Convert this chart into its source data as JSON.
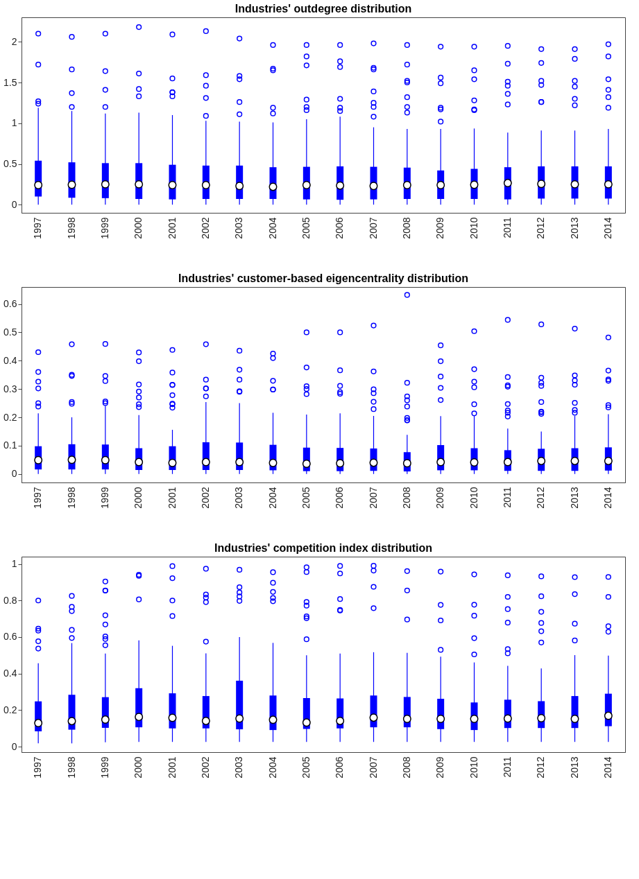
{
  "chart_data": [
    {
      "type": "box",
      "title": "Industries' outdegree distribution",
      "categories": [
        "1997",
        "1998",
        "1999",
        "2000",
        "2001",
        "2002",
        "2003",
        "2004",
        "2005",
        "2006",
        "2007",
        "2008",
        "2009",
        "2010",
        "2011",
        "2012",
        "2013",
        "2014"
      ],
      "ylim": [
        -0.1,
        2.3
      ],
      "yticks": [
        0,
        0.5,
        1,
        1.5,
        2
      ],
      "series": [
        {
          "color": "#0000ff",
          "boxes": [
            {
              "low": 0,
              "q1": 0.1,
              "median": 0.24,
              "q3": 0.54,
              "high": 1.19,
              "outliers": [
                2.1,
                1.72,
                1.27,
                1.24
              ]
            },
            {
              "low": 0,
              "q1": 0.085,
              "median": 0.245,
              "q3": 0.52,
              "high": 1.15,
              "outliers": [
                2.06,
                1.66,
                1.37,
                1.2
              ]
            },
            {
              "low": 0,
              "q1": 0.08,
              "median": 0.25,
              "q3": 0.51,
              "high": 1.12,
              "outliers": [
                2.1,
                1.64,
                1.41,
                1.2
              ]
            },
            {
              "low": 0,
              "q1": 0.07,
              "median": 0.25,
              "q3": 0.51,
              "high": 1.13,
              "outliers": [
                2.18,
                1.61,
                1.42,
                1.33
              ]
            },
            {
              "low": 0,
              "q1": 0.065,
              "median": 0.24,
              "q3": 0.49,
              "high": 1.1,
              "outliers": [
                2.09,
                1.55,
                1.38,
                1.38,
                1.33
              ]
            },
            {
              "low": 0,
              "q1": 0.07,
              "median": 0.24,
              "q3": 0.48,
              "high": 1.03,
              "outliers": [
                2.13,
                1.59,
                1.46,
                1.31,
                1.09
              ]
            },
            {
              "low": 0,
              "q1": 0.07,
              "median": 0.23,
              "q3": 0.48,
              "high": 1.02,
              "outliers": [
                2.04,
                1.58,
                1.54,
                1.26,
                1.11
              ]
            },
            {
              "low": 0,
              "q1": 0.07,
              "median": 0.22,
              "q3": 0.46,
              "high": 1.01,
              "outliers": [
                1.96,
                1.67,
                1.65,
                1.19,
                1.12
              ]
            },
            {
              "low": 0,
              "q1": 0.065,
              "median": 0.24,
              "q3": 0.465,
              "high": 1.05,
              "outliers": [
                1.96,
                1.82,
                1.71,
                1.29,
                1.2,
                1.16
              ]
            },
            {
              "low": 0,
              "q1": 0.06,
              "median": 0.235,
              "q3": 0.47,
              "high": 1.08,
              "outliers": [
                1.96,
                1.76,
                1.69,
                1.3,
                1.19,
                1.15
              ]
            },
            {
              "low": 0,
              "q1": 0.065,
              "median": 0.23,
              "q3": 0.465,
              "high": 0.95,
              "outliers": [
                1.98,
                1.68,
                1.66,
                1.39,
                1.25,
                1.2,
                1.08
              ]
            },
            {
              "low": 0,
              "q1": 0.07,
              "median": 0.24,
              "q3": 0.455,
              "high": 0.93,
              "outliers": [
                1.96,
                1.72,
                1.52,
                1.5,
                1.32,
                1.2,
                1.13
              ]
            },
            {
              "low": 0,
              "q1": 0.07,
              "median": 0.24,
              "q3": 0.42,
              "high": 0.93,
              "outliers": [
                1.94,
                1.56,
                1.49,
                1.19,
                1.17,
                1.02
              ]
            },
            {
              "low": 0,
              "q1": 0.07,
              "median": 0.245,
              "q3": 0.44,
              "high": 0.935,
              "outliers": [
                1.94,
                1.65,
                1.54,
                1.28,
                1.17,
                1.16
              ]
            },
            {
              "low": 0,
              "q1": 0.065,
              "median": 0.265,
              "q3": 0.46,
              "high": 0.885,
              "outliers": [
                1.95,
                1.73,
                1.51,
                1.46,
                1.36,
                1.23
              ]
            },
            {
              "low": 0,
              "q1": 0.075,
              "median": 0.255,
              "q3": 0.47,
              "high": 0.91,
              "outliers": [
                1.91,
                1.74,
                1.52,
                1.47,
                1.26,
                1.26
              ]
            },
            {
              "low": 0,
              "q1": 0.075,
              "median": 0.25,
              "q3": 0.47,
              "high": 0.91,
              "outliers": [
                1.91,
                1.79,
                1.52,
                1.45,
                1.3,
                1.22
              ]
            },
            {
              "low": 0,
              "q1": 0.075,
              "median": 0.25,
              "q3": 0.47,
              "high": 0.93,
              "outliers": [
                1.97,
                1.82,
                1.54,
                1.41,
                1.32,
                1.19
              ]
            }
          ]
        }
      ]
    },
    {
      "type": "box",
      "title": "Industries' customer-based eigencentrality distribution",
      "categories": [
        "1997",
        "1998",
        "1999",
        "2000",
        "2001",
        "2002",
        "2003",
        "2004",
        "2005",
        "2006",
        "2007",
        "2008",
        "2009",
        "2010",
        "2011",
        "2012",
        "2013",
        "2014"
      ],
      "ylim": [
        -0.03,
        0.66
      ],
      "yticks": [
        0,
        0.1,
        0.2,
        0.3,
        0.4,
        0.5,
        0.6
      ],
      "series": [
        {
          "color": "#0000ff",
          "boxes": [
            {
              "low": 0,
              "q1": 0.016,
              "median": 0.049,
              "q3": 0.098,
              "high": 0.214,
              "outliers": [
                0.43,
                0.36,
                0.326,
                0.302,
                0.25,
                0.238
              ]
            },
            {
              "low": 0,
              "q1": 0.016,
              "median": 0.05,
              "q3": 0.105,
              "high": 0.2,
              "outliers": [
                0.458,
                0.35,
                0.346,
                0.254,
                0.248
              ]
            },
            {
              "low": 0,
              "q1": 0.016,
              "median": 0.049,
              "q3": 0.104,
              "high": 0.24,
              "outliers": [
                0.459,
                0.346,
                0.328,
                0.256,
                0.25
              ]
            },
            {
              "low": 0,
              "q1": 0.014,
              "median": 0.042,
              "q3": 0.091,
              "high": 0.208,
              "outliers": [
                0.429,
                0.398,
                0.316,
                0.291,
                0.27,
                0.246,
                0.236
              ]
            },
            {
              "low": 0,
              "q1": 0.014,
              "median": 0.039,
              "q3": 0.098,
              "high": 0.156,
              "outliers": [
                0.438,
                0.358,
                0.315,
                0.314,
                0.278,
                0.248,
                0.246,
                0.234
              ]
            },
            {
              "low": 0,
              "q1": 0.014,
              "median": 0.042,
              "q3": 0.112,
              "high": 0.254,
              "outliers": [
                0.458,
                0.333,
                0.302,
                0.302,
                0.274
              ]
            },
            {
              "low": 0,
              "q1": 0.014,
              "median": 0.042,
              "q3": 0.111,
              "high": 0.25,
              "outliers": [
                0.435,
                0.368,
                0.333,
                0.292,
                0.29
              ]
            },
            {
              "low": 0,
              "q1": 0.013,
              "median": 0.039,
              "q3": 0.103,
              "high": 0.216,
              "outliers": [
                0.425,
                0.409,
                0.329,
                0.298,
                0.298
              ]
            },
            {
              "low": 0,
              "q1": 0.01,
              "median": 0.036,
              "q3": 0.093,
              "high": 0.21,
              "outliers": [
                0.5,
                0.376,
                0.31,
                0.3,
                0.282
              ]
            },
            {
              "low": 0,
              "q1": 0.01,
              "median": 0.038,
              "q3": 0.092,
              "high": 0.214,
              "outliers": [
                0.5,
                0.366,
                0.311,
                0.289,
                0.283
              ]
            },
            {
              "low": 0,
              "q1": 0.011,
              "median": 0.04,
              "q3": 0.09,
              "high": 0.205,
              "outliers": [
                0.524,
                0.362,
                0.299,
                0.285,
                0.255,
                0.229
              ]
            },
            {
              "low": 0,
              "q1": 0.009,
              "median": 0.038,
              "q3": 0.077,
              "high": 0.138,
              "outliers": [
                0.632,
                0.322,
                0.274,
                0.26,
                0.238,
                0.198,
                0.19,
                0.189
              ]
            },
            {
              "low": 0,
              "q1": 0.013,
              "median": 0.042,
              "q3": 0.102,
              "high": 0.204,
              "outliers": [
                0.454,
                0.398,
                0.344,
                0.304,
                0.261
              ]
            },
            {
              "low": 0,
              "q1": 0.013,
              "median": 0.041,
              "q3": 0.091,
              "high": 0.206,
              "outliers": [
                0.504,
                0.37,
                0.326,
                0.306,
                0.246,
                0.214
              ]
            },
            {
              "low": 0,
              "q1": 0.011,
              "median": 0.042,
              "q3": 0.084,
              "high": 0.16,
              "outliers": [
                0.544,
                0.342,
                0.313,
                0.308,
                0.247,
                0.224,
                0.216,
                0.203
              ]
            },
            {
              "low": 0,
              "q1": 0.011,
              "median": 0.046,
              "q3": 0.089,
              "high": 0.15,
              "outliers": [
                0.528,
                0.34,
                0.322,
                0.311,
                0.254,
                0.22,
                0.218,
                0.212
              ]
            },
            {
              "low": 0,
              "q1": 0.011,
              "median": 0.046,
              "q3": 0.091,
              "high": 0.205,
              "outliers": [
                0.513,
                0.348,
                0.33,
                0.315,
                0.251,
                0.226,
                0.216
              ]
            },
            {
              "low": 0,
              "q1": 0.012,
              "median": 0.046,
              "q3": 0.094,
              "high": 0.211,
              "outliers": [
                0.482,
                0.365,
                0.334,
                0.329,
                0.243,
                0.235
              ]
            }
          ]
        }
      ]
    },
    {
      "type": "box",
      "title": "Industries' competition index distribution",
      "categories": [
        "1997",
        "1998",
        "1999",
        "2000",
        "2001",
        "2002",
        "2003",
        "2004",
        "2005",
        "2006",
        "2007",
        "2008",
        "2009",
        "2010",
        "2011",
        "2012",
        "2013",
        "2014"
      ],
      "ylim": [
        -0.03,
        1.04
      ],
      "yticks": [
        0,
        0.2,
        0.4,
        0.6,
        0.8,
        1
      ],
      "series": [
        {
          "color": "#0000ff",
          "boxes": [
            {
              "low": 0.018,
              "q1": 0.084,
              "median": 0.129,
              "q3": 0.248,
              "high": 0.457,
              "outliers": [
                0.8,
                0.646,
                0.635,
                0.577,
                0.537
              ]
            },
            {
              "low": 0.018,
              "q1": 0.093,
              "median": 0.14,
              "q3": 0.284,
              "high": 0.567,
              "outliers": [
                0.825,
                0.765,
                0.742,
                0.639,
                0.595
              ]
            },
            {
              "low": 0.024,
              "q1": 0.103,
              "median": 0.148,
              "q3": 0.271,
              "high": 0.51,
              "outliers": [
                0.904,
                0.855,
                0.854,
                0.719,
                0.669,
                0.603,
                0.589,
                0.555
              ]
            },
            {
              "low": 0.026,
              "q1": 0.106,
              "median": 0.163,
              "q3": 0.32,
              "high": 0.582,
              "outliers": [
                0.941,
                0.935,
                0.806
              ]
            },
            {
              "low": 0.026,
              "q1": 0.1,
              "median": 0.158,
              "q3": 0.292,
              "high": 0.552,
              "outliers": [
                0.988,
                0.922,
                0.8,
                0.715
              ]
            },
            {
              "low": 0.026,
              "q1": 0.1,
              "median": 0.141,
              "q3": 0.277,
              "high": 0.511,
              "outliers": [
                0.974,
                0.833,
                0.816,
                0.791,
                0.575
              ]
            },
            {
              "low": 0.026,
              "q1": 0.095,
              "median": 0.154,
              "q3": 0.361,
              "high": 0.6,
              "outliers": [
                0.968,
                0.873,
                0.844,
                0.822,
                0.798
              ]
            },
            {
              "low": 0.026,
              "q1": 0.091,
              "median": 0.147,
              "q3": 0.28,
              "high": 0.568,
              "outliers": [
                0.955,
                0.897,
                0.847,
                0.814,
                0.796
              ]
            },
            {
              "low": 0.026,
              "q1": 0.097,
              "median": 0.132,
              "q3": 0.266,
              "high": 0.5,
              "outliers": [
                0.982,
                0.956,
                0.792,
                0.772,
                0.713,
                0.703,
                0.588
              ]
            },
            {
              "low": 0.026,
              "q1": 0.1,
              "median": 0.141,
              "q3": 0.264,
              "high": 0.51,
              "outliers": [
                0.989,
                0.948,
                0.808,
                0.748,
                0.745
              ]
            },
            {
              "low": 0.026,
              "q1": 0.106,
              "median": 0.159,
              "q3": 0.28,
              "high": 0.517,
              "outliers": [
                0.99,
                0.964,
                0.875,
                0.758
              ]
            },
            {
              "low": 0.026,
              "q1": 0.106,
              "median": 0.152,
              "q3": 0.272,
              "high": 0.514,
              "outliers": [
                0.961,
                0.855,
                0.696
              ]
            },
            {
              "low": 0.026,
              "q1": 0.096,
              "median": 0.152,
              "q3": 0.262,
              "high": 0.493,
              "outliers": [
                0.958,
                0.776,
                0.691,
                0.53
              ]
            },
            {
              "low": 0.026,
              "q1": 0.091,
              "median": 0.152,
              "q3": 0.242,
              "high": 0.461,
              "outliers": [
                0.943,
                0.777,
                0.717,
                0.594,
                0.505
              ]
            },
            {
              "low": 0.026,
              "q1": 0.102,
              "median": 0.154,
              "q3": 0.257,
              "high": 0.442,
              "outliers": [
                0.938,
                0.82,
                0.753,
                0.679,
                0.534,
                0.511
              ]
            },
            {
              "low": 0.026,
              "q1": 0.102,
              "median": 0.156,
              "q3": 0.249,
              "high": 0.428,
              "outliers": [
                0.932,
                0.823,
                0.738,
                0.677,
                0.632,
                0.57
              ]
            },
            {
              "low": 0.026,
              "q1": 0.102,
              "median": 0.152,
              "q3": 0.277,
              "high": 0.501,
              "outliers": [
                0.928,
                0.835,
                0.673,
                0.581
              ]
            },
            {
              "low": 0.026,
              "q1": 0.112,
              "median": 0.169,
              "q3": 0.29,
              "high": 0.498,
              "outliers": [
                0.929,
                0.82,
                0.659,
                0.629
              ]
            }
          ]
        }
      ]
    }
  ]
}
